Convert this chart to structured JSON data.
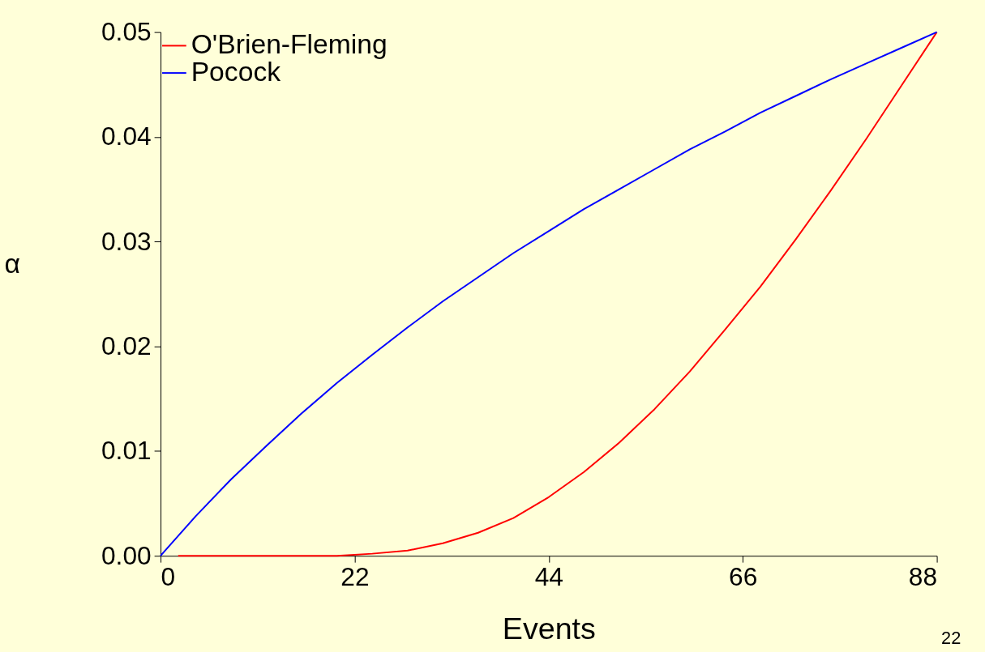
{
  "chart_data": {
    "type": "line",
    "xlabel": "Events",
    "ylabel": "α",
    "annotations": [
      "22"
    ],
    "xlim": [
      0,
      88
    ],
    "xticks": [
      0,
      22,
      44,
      66,
      88
    ],
    "ylim": [
      0,
      0.05
    ],
    "yticks": [
      {
        "value": 0,
        "label": "0.00"
      },
      {
        "value": 0.01,
        "label": "0.01"
      },
      {
        "value": 0.02,
        "label": "0.02"
      },
      {
        "value": 0.03,
        "label": "0.03"
      },
      {
        "value": 0.04,
        "label": "0.04"
      },
      {
        "value": 0.05,
        "label": "0.05"
      }
    ],
    "grid": false,
    "legend": "top left",
    "marker": "none",
    "line_style": "solid",
    "series": [
      {
        "name": "O'Brien-Fleming",
        "color": "#ff0000",
        "x": [
          2,
          8,
          16,
          20,
          24,
          28,
          32,
          36,
          40,
          44,
          48,
          52,
          56,
          60,
          64,
          68,
          72,
          76,
          80,
          84,
          88
        ],
        "values": [
          0,
          0,
          0,
          0.0,
          0.0002,
          0.0005,
          0.0012,
          0.0022,
          0.0036,
          0.0056,
          0.008,
          0.0108,
          0.014,
          0.0176,
          0.0216,
          0.0257,
          0.0302,
          0.0349,
          0.0398,
          0.0449,
          0.05
        ]
      },
      {
        "name": "Pocock",
        "color": "#0000ff",
        "x": [
          0,
          4,
          8,
          12,
          16,
          20,
          24,
          28,
          32,
          36,
          40,
          44,
          48,
          52,
          56,
          60,
          64,
          68,
          72,
          76,
          80,
          84,
          88
        ],
        "values": [
          0,
          0.0038,
          0.0073,
          0.0105,
          0.0136,
          0.0165,
          0.0192,
          0.0218,
          0.0243,
          0.0266,
          0.0289,
          0.031,
          0.0331,
          0.035,
          0.0369,
          0.0388,
          0.0405,
          0.0423,
          0.0439,
          0.0455,
          0.047,
          0.0485,
          0.05
        ]
      }
    ]
  }
}
